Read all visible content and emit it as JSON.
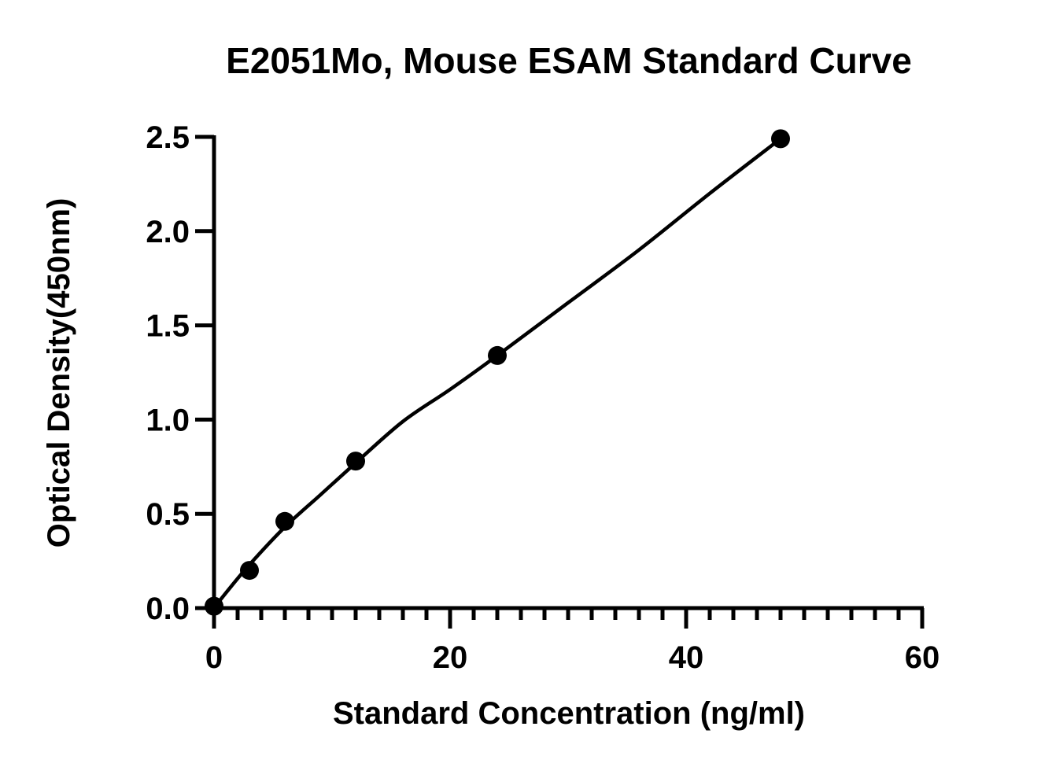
{
  "chart_data": {
    "type": "scatter",
    "title": "E2051Mo, Mouse ESAM Standard Curve",
    "xlabel": "Standard Concentration (ng/ml)",
    "ylabel": "Optical Density(450nm)",
    "xlim": [
      0,
      60
    ],
    "ylim": [
      0,
      2.5
    ],
    "x_ticks": [
      0,
      20,
      40,
      60
    ],
    "x_tick_labels": [
      "0",
      "20",
      "40",
      "60"
    ],
    "x_minor_step": 2,
    "y_ticks": [
      0,
      0.5,
      1.0,
      1.5,
      2.0,
      2.5
    ],
    "y_tick_labels": [
      "0.0",
      "0.5",
      "1.0",
      "1.5",
      "2.0",
      "2.5"
    ],
    "grid": false,
    "legend": false,
    "series": [
      {
        "x": [
          0,
          3,
          6,
          12,
          24,
          48
        ],
        "y": [
          0.01,
          0.2,
          0.46,
          0.78,
          1.34,
          2.49
        ]
      }
    ],
    "fit_curve": {
      "type": "smooth",
      "x": [
        0,
        1,
        3,
        6,
        9,
        12,
        16,
        20,
        24,
        30,
        36,
        42,
        48
      ],
      "y": [
        0,
        0.08,
        0.23,
        0.43,
        0.6,
        0.77,
        0.99,
        1.16,
        1.34,
        1.62,
        1.9,
        2.2,
        2.49
      ]
    },
    "marker_color": "#000000",
    "line_color": "#000000"
  }
}
